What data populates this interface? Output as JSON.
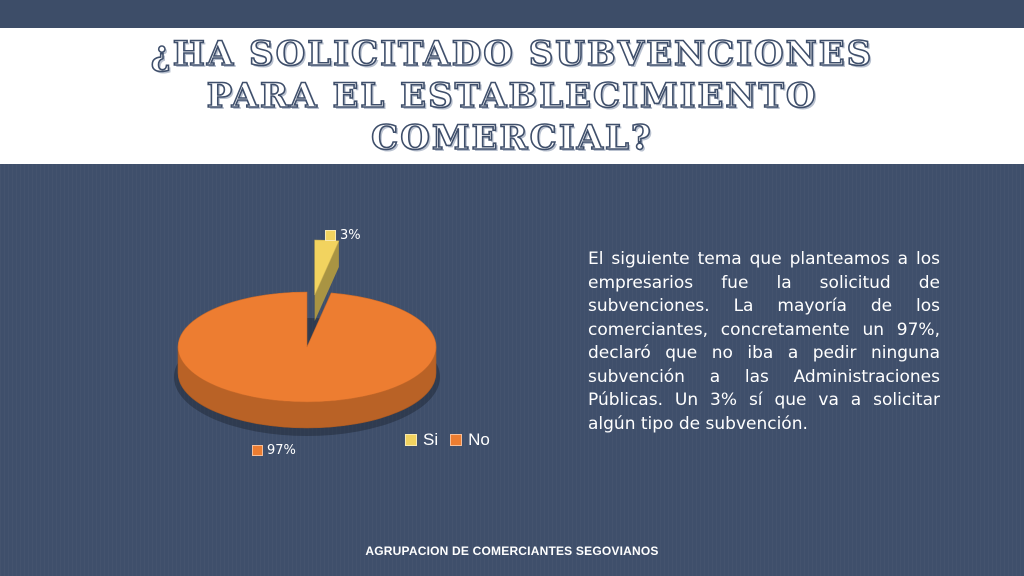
{
  "slide": {
    "title": "¿Ha solicitado subvenciones para el establecimiento comercial?",
    "body": "El siguiente tema que  planteamos a los empresarios fue la solicitud de subvenciones. La mayoría de los comerciantes, concretamente un 97%, declaró que no iba a pedir ninguna subvención a las Administraciones Públicas. Un 3% sí que va a solicitar algún tipo de subvención.",
    "footer": "AGRUPACION DE COMERCIANTES SEGOVIANOS"
  },
  "colors": {
    "background": "#3f4f6b",
    "title_panel": "#ffffff",
    "si_slice": "#f2d35f",
    "no_slice": "#ed7d31"
  },
  "chart_data": {
    "type": "pie",
    "style": "3d-exploded",
    "title": "",
    "categories": [
      "Si",
      "No"
    ],
    "values": [
      3,
      97
    ],
    "data_labels": [
      "3%",
      "97%"
    ],
    "legend": {
      "position": "bottom-right",
      "entries": [
        "Si",
        "No"
      ]
    }
  }
}
